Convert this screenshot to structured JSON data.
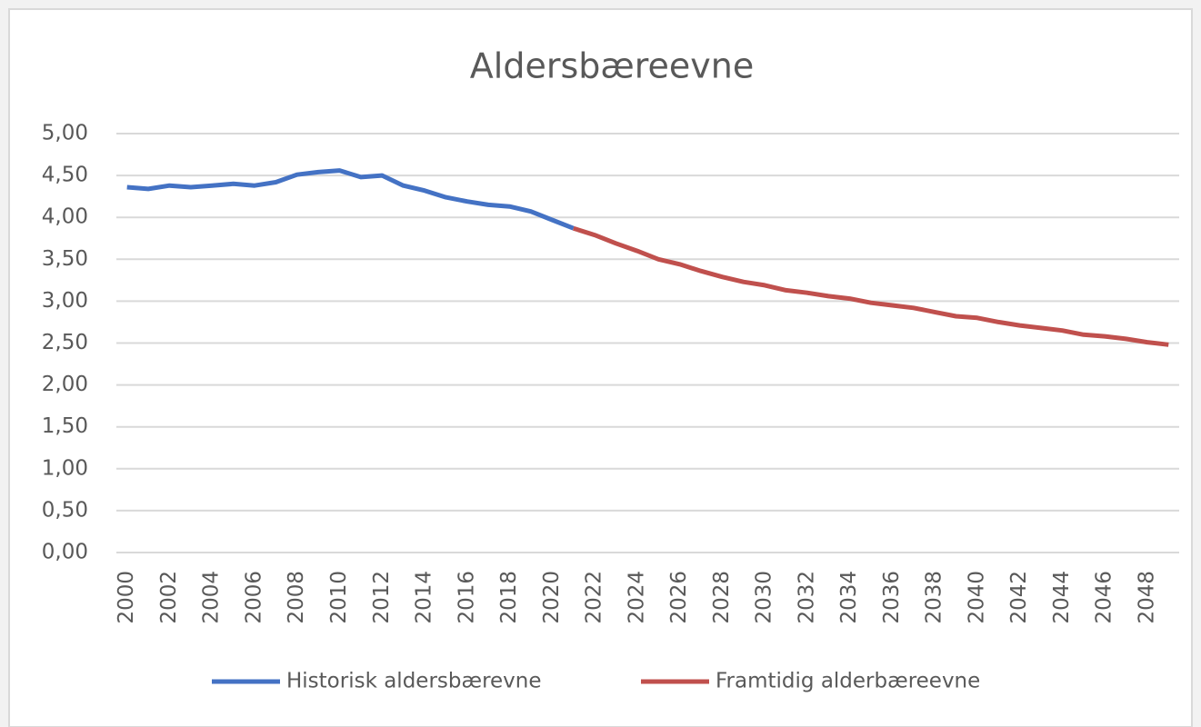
{
  "chart_data": {
    "type": "line",
    "title": "Aldersbæreevne",
    "categories": [
      "2000",
      null,
      "2002",
      null,
      "2004",
      null,
      "2006",
      null,
      "2008",
      null,
      "2010",
      null,
      "2012",
      null,
      "2014",
      null,
      "2016",
      null,
      "2018",
      null,
      "2020",
      null,
      "2022",
      null,
      "2024",
      null,
      "2026",
      null,
      "2028",
      null,
      "2030",
      null,
      "2032",
      null,
      "2034",
      null,
      "2036",
      null,
      "2038",
      null,
      "2040",
      null,
      "2042",
      null,
      "2044",
      null,
      "2046",
      null,
      "2048",
      null
    ],
    "series": [
      {
        "name": "Historisk aldersbærevne",
        "color": "#4472c4",
        "values": [
          4.36,
          4.34,
          4.38,
          4.36,
          4.38,
          4.4,
          4.38,
          4.42,
          4.51,
          4.54,
          4.56,
          4.48,
          4.5,
          4.38,
          4.32,
          4.24,
          4.19,
          4.15,
          4.13,
          4.07,
          3.97,
          3.87,
          null,
          null,
          null,
          null,
          null,
          null,
          null,
          null,
          null,
          null,
          null,
          null,
          null,
          null,
          null,
          null,
          null,
          null,
          null,
          null,
          null,
          null,
          null,
          null,
          null,
          null,
          null,
          null
        ]
      },
      {
        "name": "Framtidig alderbæreevne",
        "color": "#c0504d",
        "values": [
          null,
          null,
          null,
          null,
          null,
          null,
          null,
          null,
          null,
          null,
          null,
          null,
          null,
          null,
          null,
          null,
          null,
          null,
          null,
          null,
          null,
          3.87,
          3.79,
          3.69,
          3.6,
          3.5,
          3.44,
          3.36,
          3.29,
          3.23,
          3.19,
          3.13,
          3.1,
          3.06,
          3.03,
          2.98,
          2.95,
          2.92,
          2.87,
          2.82,
          2.8,
          2.75,
          2.71,
          2.68,
          2.65,
          2.6,
          2.58,
          2.55,
          2.51,
          2.48
        ]
      }
    ],
    "ylim": [
      0,
      5
    ],
    "yticks": [
      {
        "value": 0,
        "label": "0,00"
      },
      {
        "value": 0.5,
        "label": "0,50"
      },
      {
        "value": 1,
        "label": "1,00"
      },
      {
        "value": 1.5,
        "label": "1,50"
      },
      {
        "value": 2,
        "label": "2,00"
      },
      {
        "value": 2.5,
        "label": "2,50"
      },
      {
        "value": 3,
        "label": "3,00"
      },
      {
        "value": 3.5,
        "label": "3,50"
      },
      {
        "value": 4,
        "label": "4,00"
      },
      {
        "value": 4.5,
        "label": "4,50"
      },
      {
        "value": 5,
        "label": "5,00"
      }
    ],
    "grid": true,
    "legend": "bottom"
  }
}
